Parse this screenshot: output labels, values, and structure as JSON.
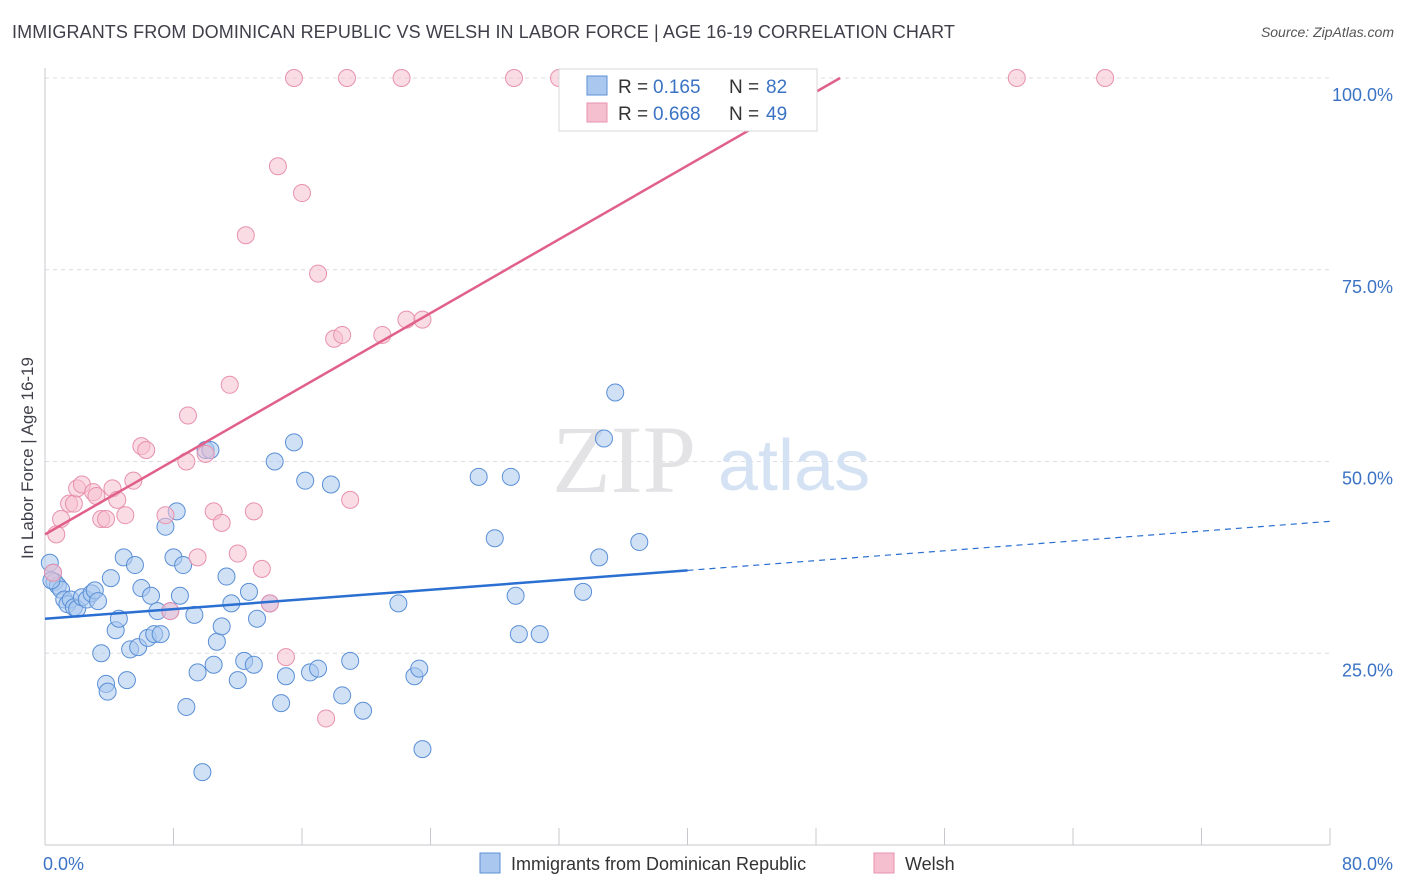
{
  "header": {
    "title": "IMMIGRANTS FROM DOMINICAN REPUBLIC VS WELSH IN LABOR FORCE | AGE 16-19 CORRELATION CHART",
    "source": "Source: ZipAtlas.com"
  },
  "watermark": {
    "zip": "ZIP",
    "atlas": "atlas"
  },
  "colors": {
    "blue_fill": "#aac8ef",
    "blue_stroke": "#5a8fd6",
    "blue_line": "#2a6fd1",
    "pink_fill": "#f5bfd0",
    "pink_stroke": "#e891ae",
    "pink_line": "#e0608a"
  },
  "chart_data": {
    "type": "scatter",
    "title": "IMMIGRANTS FROM DOMINICAN REPUBLIC VS WELSH IN LABOR FORCE | AGE 16-19 CORRELATION CHART",
    "xlabel": "",
    "ylabel": "In Labor Force | Age 16-19",
    "xlim": [
      0,
      80
    ],
    "ylim": [
      0,
      100
    ],
    "x_tick_labels": [
      "0.0%",
      "80.0%"
    ],
    "y_ticks": [
      25,
      50,
      75,
      100
    ],
    "y_tick_labels": [
      "25.0%",
      "50.0%",
      "75.0%",
      "100.0%"
    ],
    "legend": [
      {
        "name": "Immigrants from Dominican Republic",
        "r_label": "R =",
        "r": "0.165",
        "n_label": "N =",
        "n": "82"
      },
      {
        "name": "Welsh",
        "r_label": "R =",
        "r": "0.668",
        "n_label": "N =",
        "n": "49"
      }
    ],
    "series": [
      {
        "name": "Immigrants from Dominican Republic",
        "trend": {
          "x0": 0,
          "y0": 29.5,
          "x1": 40,
          "y1": 35.8,
          "dash_to_x": 80,
          "dash_to_y": 42.2
        },
        "points": [
          [
            0.3,
            36.8
          ],
          [
            0.5,
            35.5
          ],
          [
            0.6,
            34.3
          ],
          [
            0.8,
            33.8
          ],
          [
            1.0,
            33.3
          ],
          [
            1.2,
            32.0
          ],
          [
            1.4,
            31.4
          ],
          [
            1.6,
            32.0
          ],
          [
            1.8,
            31.0
          ],
          [
            2.0,
            30.8
          ],
          [
            2.3,
            32.3
          ],
          [
            2.6,
            32.0
          ],
          [
            2.9,
            32.8
          ],
          [
            3.1,
            33.2
          ],
          [
            3.3,
            31.8
          ],
          [
            3.5,
            25.0
          ],
          [
            3.8,
            21.0
          ],
          [
            3.9,
            20.0
          ],
          [
            4.1,
            34.8
          ],
          [
            4.4,
            28.0
          ],
          [
            4.6,
            29.5
          ],
          [
            4.9,
            37.5
          ],
          [
            5.1,
            21.5
          ],
          [
            5.3,
            25.5
          ],
          [
            5.6,
            36.5
          ],
          [
            5.8,
            25.8
          ],
          [
            6.0,
            33.5
          ],
          [
            6.4,
            27.0
          ],
          [
            6.6,
            32.5
          ],
          [
            6.8,
            27.5
          ],
          [
            7.0,
            30.5
          ],
          [
            7.2,
            27.5
          ],
          [
            7.5,
            41.5
          ],
          [
            7.8,
            30.5
          ],
          [
            8.0,
            37.5
          ],
          [
            8.2,
            43.5
          ],
          [
            8.4,
            32.5
          ],
          [
            8.6,
            36.5
          ],
          [
            8.8,
            18.0
          ],
          [
            9.3,
            30.0
          ],
          [
            9.5,
            22.5
          ],
          [
            9.8,
            9.5
          ],
          [
            10.0,
            51.5
          ],
          [
            10.3,
            51.5
          ],
          [
            10.5,
            23.5
          ],
          [
            10.7,
            26.5
          ],
          [
            11.0,
            28.5
          ],
          [
            11.3,
            35.0
          ],
          [
            11.6,
            31.5
          ],
          [
            12.0,
            21.5
          ],
          [
            12.4,
            24.0
          ],
          [
            12.7,
            33.0
          ],
          [
            13.0,
            23.5
          ],
          [
            13.2,
            29.5
          ],
          [
            14.0,
            31.5
          ],
          [
            14.3,
            50.0
          ],
          [
            14.7,
            18.5
          ],
          [
            15.0,
            22.0
          ],
          [
            15.5,
            52.5
          ],
          [
            16.2,
            47.5
          ],
          [
            16.5,
            22.5
          ],
          [
            17.0,
            23.0
          ],
          [
            17.8,
            47.0
          ],
          [
            18.5,
            19.5
          ],
          [
            19.0,
            24.0
          ],
          [
            19.8,
            17.5
          ],
          [
            22.0,
            31.5
          ],
          [
            23.0,
            22.0
          ],
          [
            23.3,
            23.0
          ],
          [
            23.5,
            12.5
          ],
          [
            27.0,
            48.0
          ],
          [
            28.0,
            40.0
          ],
          [
            29.0,
            48.0
          ],
          [
            29.3,
            32.5
          ],
          [
            29.5,
            27.5
          ],
          [
            30.8,
            27.5
          ],
          [
            33.5,
            33.0
          ],
          [
            34.5,
            37.5
          ],
          [
            34.8,
            53.0
          ],
          [
            35.5,
            59.0
          ],
          [
            37.0,
            39.5
          ],
          [
            0.4,
            34.5
          ]
        ]
      },
      {
        "name": "Welsh",
        "trend": {
          "x0": 0,
          "y0": 40.5,
          "x1": 49.5,
          "y1": 100
        },
        "points": [
          [
            0.5,
            35.5
          ],
          [
            0.7,
            40.5
          ],
          [
            1.0,
            42.5
          ],
          [
            1.5,
            44.5
          ],
          [
            1.8,
            44.5
          ],
          [
            2.0,
            46.5
          ],
          [
            2.3,
            47.0
          ],
          [
            3.0,
            46.0
          ],
          [
            3.2,
            45.5
          ],
          [
            3.5,
            42.5
          ],
          [
            3.8,
            42.5
          ],
          [
            4.2,
            46.5
          ],
          [
            4.5,
            45.0
          ],
          [
            5.0,
            43.0
          ],
          [
            5.5,
            47.5
          ],
          [
            6.0,
            52.0
          ],
          [
            6.3,
            51.5
          ],
          [
            7.5,
            43.0
          ],
          [
            7.8,
            30.5
          ],
          [
            8.8,
            50.0
          ],
          [
            8.9,
            56.0
          ],
          [
            9.5,
            37.5
          ],
          [
            10.0,
            51.0
          ],
          [
            10.5,
            43.5
          ],
          [
            11.0,
            42.0
          ],
          [
            11.5,
            60.0
          ],
          [
            12.0,
            38.0
          ],
          [
            12.5,
            79.5
          ],
          [
            13.0,
            43.5
          ],
          [
            13.5,
            36.0
          ],
          [
            14.0,
            31.5
          ],
          [
            14.5,
            88.5
          ],
          [
            15.0,
            24.5
          ],
          [
            16.0,
            85.0
          ],
          [
            17.0,
            74.5
          ],
          [
            17.5,
            16.5
          ],
          [
            18.0,
            66.0
          ],
          [
            18.5,
            66.5
          ],
          [
            19.0,
            45.0
          ],
          [
            21.0,
            66.5
          ],
          [
            22.5,
            68.5
          ],
          [
            23.5,
            68.5
          ],
          [
            15.5,
            100
          ],
          [
            18.8,
            100
          ],
          [
            22.2,
            100
          ],
          [
            29.2,
            100
          ],
          [
            32.0,
            100
          ],
          [
            60.5,
            100
          ],
          [
            66.0,
            100
          ]
        ]
      }
    ]
  }
}
